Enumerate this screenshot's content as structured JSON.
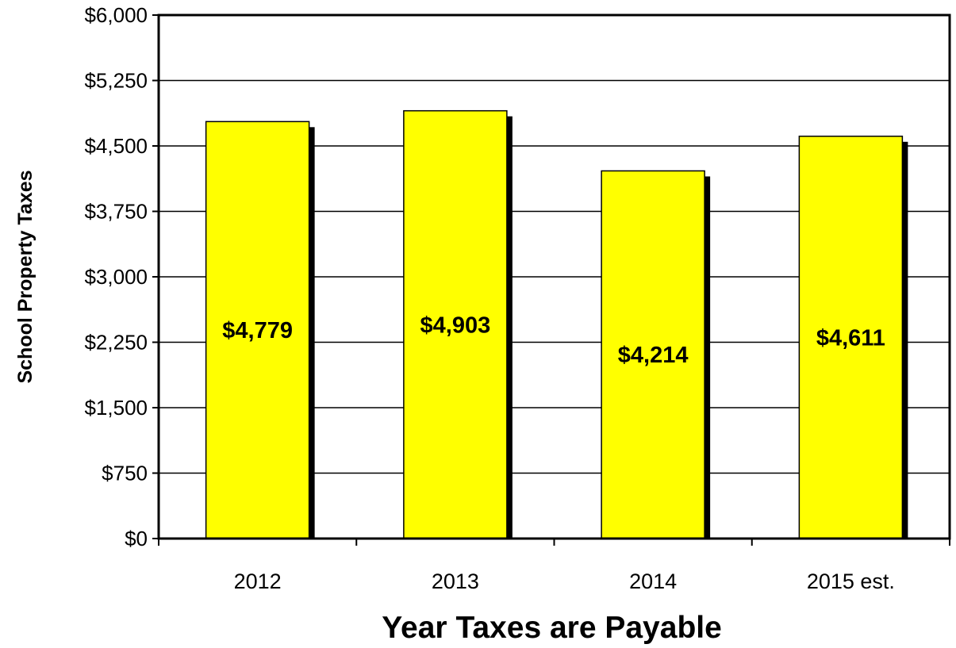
{
  "chart_data": {
    "type": "bar",
    "categories": [
      "2012",
      "2013",
      "2014",
      "2015 est."
    ],
    "values": [
      4779,
      4903,
      4214,
      4611
    ],
    "data_labels": [
      "$4,779",
      "$4,903",
      "$4,214",
      "$4,611"
    ],
    "title": "",
    "xlabel": "Year Taxes are Payable",
    "ylabel": "School Property Taxes",
    "ylim": [
      0,
      6000
    ],
    "yticks": [
      0,
      750,
      1500,
      2250,
      3000,
      3750,
      4500,
      5250,
      6000
    ],
    "ytick_labels": [
      "$0",
      "$750",
      "$1,500",
      "$2,250",
      "$3,000",
      "$3,750",
      "$4,500",
      "$5,250",
      "$6,000"
    ],
    "grid": true,
    "legend": "none",
    "colors": {
      "bar_fill": "#FFFF00",
      "bar_stroke": "#000000",
      "bar_shadow": "#000000",
      "gridline": "#000000",
      "background": "#FFFFFF"
    }
  }
}
